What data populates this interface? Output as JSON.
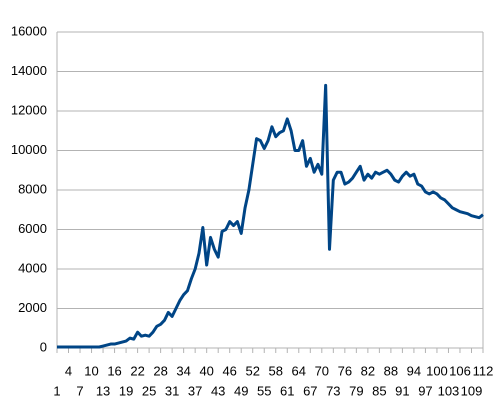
{
  "chart_data": {
    "type": "line",
    "x": [
      1,
      2,
      3,
      4,
      5,
      6,
      7,
      8,
      9,
      10,
      11,
      12,
      13,
      14,
      15,
      16,
      17,
      18,
      19,
      20,
      21,
      22,
      23,
      24,
      25,
      26,
      27,
      28,
      29,
      30,
      31,
      32,
      33,
      34,
      35,
      36,
      37,
      38,
      39,
      40,
      41,
      42,
      43,
      44,
      45,
      46,
      47,
      48,
      49,
      50,
      51,
      52,
      53,
      54,
      55,
      56,
      57,
      58,
      59,
      60,
      61,
      62,
      63,
      64,
      65,
      66,
      67,
      68,
      69,
      70,
      71,
      72,
      73,
      74,
      75,
      76,
      77,
      78,
      79,
      80,
      81,
      82,
      83,
      84,
      85,
      86,
      87,
      88,
      89,
      90,
      91,
      92,
      93,
      94,
      95,
      96,
      97,
      98,
      99,
      100,
      101,
      102,
      103,
      104,
      105,
      106,
      107,
      108,
      109,
      110,
      111,
      112
    ],
    "series": [
      {
        "color": "#004586",
        "values": [
          50,
          50,
          50,
          50,
          50,
          50,
          50,
          50,
          50,
          50,
          50,
          50,
          100,
          150,
          200,
          200,
          250,
          300,
          350,
          500,
          450,
          800,
          600,
          650,
          600,
          800,
          1100,
          1200,
          1400,
          1800,
          1600,
          2000,
          2400,
          2700,
          2900,
          3500,
          4000,
          4800,
          6100,
          4200,
          5600,
          5000,
          4600,
          5900,
          6000,
          6400,
          6200,
          6400,
          5800,
          7100,
          8000,
          9300,
          10600,
          10500,
          10100,
          10500,
          11200,
          10700,
          10900,
          11000,
          11600,
          11000,
          10000,
          10000,
          10500,
          9200,
          9600,
          8900,
          9300,
          8800,
          13300,
          5000,
          8500,
          8900,
          8900,
          8300,
          8400,
          8600,
          8900,
          9200,
          8500,
          8800,
          8600,
          8900,
          8800,
          8900,
          9000,
          8800,
          8500,
          8400,
          8700,
          8900,
          8700,
          8800,
          8300,
          8200,
          7900,
          7800,
          7900,
          7800,
          7600,
          7500,
          7300,
          7100,
          7000,
          6900,
          6850,
          6800,
          6700,
          6650,
          6600,
          6750
        ]
      }
    ],
    "xlim": [
      1,
      112
    ],
    "xticks": [
      1,
      4,
      7,
      10,
      13,
      16,
      19,
      22,
      25,
      28,
      31,
      34,
      37,
      40,
      43,
      46,
      49,
      52,
      55,
      58,
      61,
      64,
      67,
      70,
      73,
      76,
      79,
      82,
      85,
      88,
      91,
      94,
      97,
      100,
      103,
      106,
      109,
      112
    ],
    "ylim": [
      0,
      16000
    ],
    "yticks": [
      0,
      2000,
      4000,
      6000,
      8000,
      10000,
      12000,
      14000,
      16000
    ],
    "grid": true
  }
}
